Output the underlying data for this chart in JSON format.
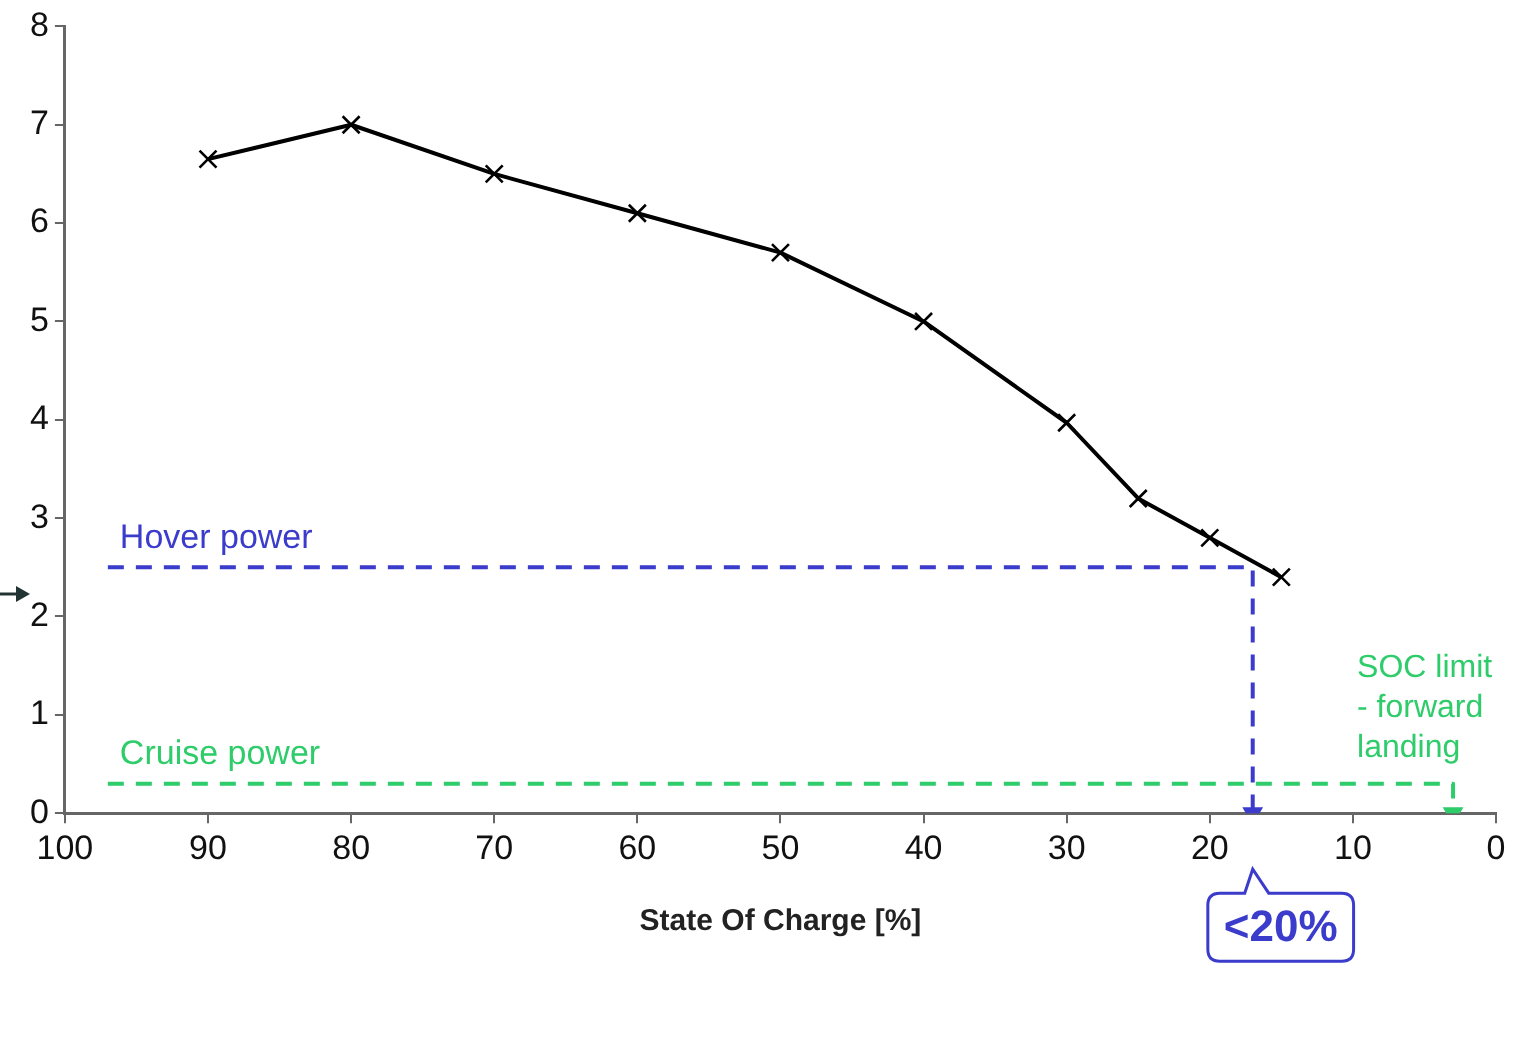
{
  "chart_data": {
    "type": "line",
    "xlabel": "State Of Charge [%]",
    "xlim": [
      100,
      0
    ],
    "xticks": [
      100,
      90,
      80,
      70,
      60,
      50,
      40,
      30,
      20,
      10,
      0
    ],
    "ylim": [
      0,
      8
    ],
    "yticks": [
      0,
      1,
      2,
      3,
      4,
      5,
      6,
      7,
      8
    ],
    "grid": false,
    "legend": false,
    "marker": "cross",
    "series": [
      {
        "type": "line",
        "color": "#000000",
        "x": [
          90,
          80,
          70,
          60,
          50,
          40,
          30,
          25,
          20,
          15
        ],
        "values": [
          6.65,
          7.0,
          6.5,
          6.1,
          5.7,
          5.0,
          3.97,
          3.2,
          2.8,
          2.4
        ]
      },
      {
        "type": "line",
        "name": "Hover power",
        "color": "#3b3bcc",
        "x": [
          97,
          17,
          17
        ],
        "values": [
          2.5,
          2.5,
          0
        ],
        "line_style": "dashed",
        "marker": "none"
      },
      {
        "type": "line",
        "name": "Cruise power",
        "color": "#2ecc6a",
        "x": [
          97,
          3,
          3
        ],
        "values": [
          0.3,
          0.3,
          0
        ],
        "line_style": "dashed",
        "marker": "none"
      }
    ],
    "annotations": [
      {
        "text": "SOC limit\n- forward\nlanding",
        "x": 3,
        "y": 0.3
      },
      {
        "text": "<20%",
        "x": 17,
        "y": 0
      }
    ]
  }
}
